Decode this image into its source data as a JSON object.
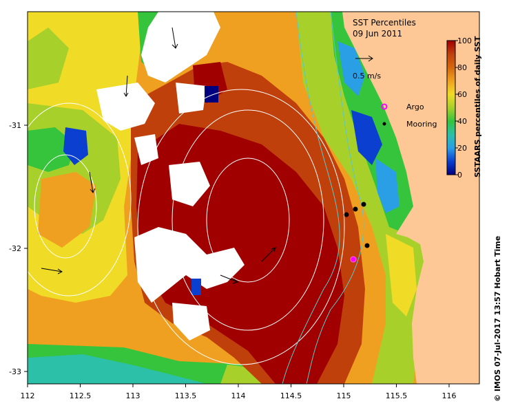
{
  "map": {
    "title": "SST Percentiles",
    "date": "09 Jun 2011",
    "scale_label": "0.5 m/s",
    "x_ticks": [
      "112",
      "112.5",
      "113",
      "113.5",
      "114",
      "114.5",
      "115",
      "115.5",
      "116"
    ],
    "y_ticks": [
      "-31",
      "-32",
      "-33"
    ],
    "legend": {
      "argo": "Argo",
      "mooring": "Mooring"
    },
    "colorbar": {
      "label": "SSTAARS percentiles of daily SST",
      "ticks": [
        "0",
        "20",
        "40",
        "60",
        "80",
        "100"
      ],
      "colors": [
        "#00007f",
        "#0a3fd0",
        "#2a9fe6",
        "#2cc0a8",
        "#35c43c",
        "#a8d02a",
        "#f0dc26",
        "#f0a020",
        "#d4680e",
        "#c0400c",
        "#a00000"
      ]
    },
    "credit": "© IMOS 07-Jul-2017 13:57 Hobart Time"
  },
  "colors": {
    "land": "#fdc896",
    "no_data": "#ffffff",
    "argo": "#ff00ff",
    "mooring": "#000000"
  }
}
